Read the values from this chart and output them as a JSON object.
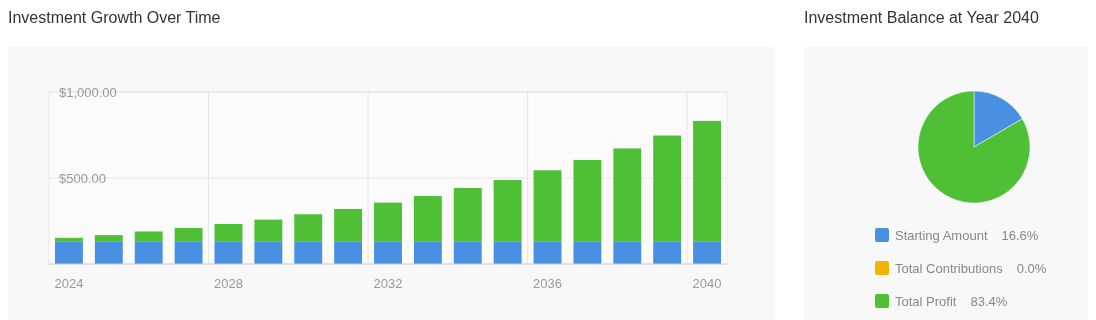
{
  "chart_data": [
    {
      "type": "bar",
      "title": "Investment Growth Over Time",
      "stacked": true,
      "categories": [
        "2024",
        null,
        null,
        null,
        "2028",
        null,
        null,
        null,
        "2032",
        null,
        null,
        null,
        "2036",
        null,
        null,
        null,
        "2040"
      ],
      "series": [
        {
          "color": "#4a90e2",
          "values": [
            129,
            129,
            129,
            129,
            129,
            129,
            129,
            129,
            129,
            129,
            129,
            129,
            129,
            129,
            129,
            129,
            129
          ]
        },
        {
          "color": "#4fbf35",
          "values": [
            23,
            39,
            60,
            80,
            104,
            129,
            160,
            191,
            228,
            266,
            313,
            359,
            416,
            476,
            543,
            618,
            703
          ]
        }
      ],
      "ylim": [
        0,
        1000
      ],
      "yticks": [
        {
          "value": 500,
          "label": "$500.00"
        },
        {
          "value": 1000,
          "label": "$1,000.00"
        }
      ],
      "grid": true,
      "legend": false
    },
    {
      "type": "pie",
      "title": "Investment Balance at Year 2040",
      "categories": [
        "Starting Amount",
        "Total Contributions",
        "Total Profit"
      ],
      "values": [
        16.6,
        0.0,
        83.4
      ],
      "colors": [
        "#4a90e2",
        "#f0b400",
        "#4fbf35"
      ],
      "value_labels": [
        "16.6%",
        "0.0%",
        "83.4%"
      ],
      "legend": "bottom"
    }
  ]
}
